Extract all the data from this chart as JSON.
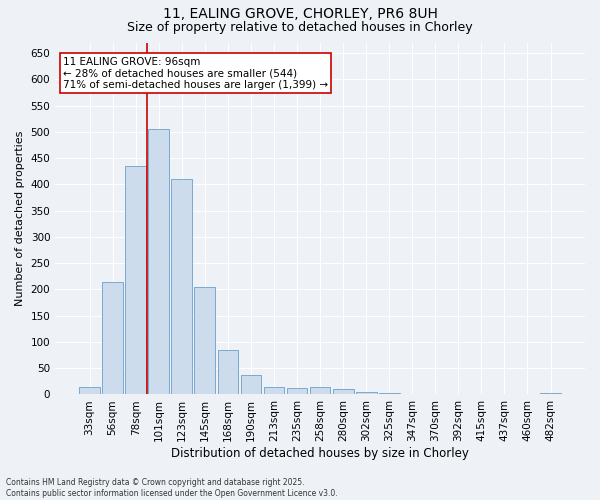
{
  "title": "11, EALING GROVE, CHORLEY, PR6 8UH",
  "subtitle": "Size of property relative to detached houses in Chorley",
  "xlabel": "Distribution of detached houses by size in Chorley",
  "ylabel": "Number of detached properties",
  "categories": [
    "33sqm",
    "56sqm",
    "78sqm",
    "101sqm",
    "123sqm",
    "145sqm",
    "168sqm",
    "190sqm",
    "213sqm",
    "235sqm",
    "258sqm",
    "280sqm",
    "302sqm",
    "325sqm",
    "347sqm",
    "370sqm",
    "392sqm",
    "415sqm",
    "437sqm",
    "460sqm",
    "482sqm"
  ],
  "values": [
    14,
    215,
    435,
    505,
    410,
    205,
    85,
    37,
    15,
    13,
    15,
    10,
    5,
    3,
    1,
    1,
    1,
    0,
    0,
    0,
    3
  ],
  "bar_color": "#ccdcec",
  "bar_edge_color": "#6a9fca",
  "vline_x_index": 3,
  "vline_color": "#cc0000",
  "annotation_text": "11 EALING GROVE: 96sqm\n← 28% of detached houses are smaller (544)\n71% of semi-detached houses are larger (1,399) →",
  "annotation_box_facecolor": "#ffffff",
  "annotation_box_edgecolor": "#cc0000",
  "footer": "Contains HM Land Registry data © Crown copyright and database right 2025.\nContains public sector information licensed under the Open Government Licence v3.0.",
  "ylim": [
    0,
    670
  ],
  "yticks": [
    0,
    50,
    100,
    150,
    200,
    250,
    300,
    350,
    400,
    450,
    500,
    550,
    600,
    650
  ],
  "bg_color": "#eef2f7",
  "grid_color": "#ffffff",
  "title_fontsize": 10,
  "subtitle_fontsize": 9,
  "tick_fontsize": 7.5,
  "ylabel_fontsize": 8,
  "xlabel_fontsize": 8.5,
  "annot_fontsize": 7.5,
  "footer_fontsize": 5.5
}
